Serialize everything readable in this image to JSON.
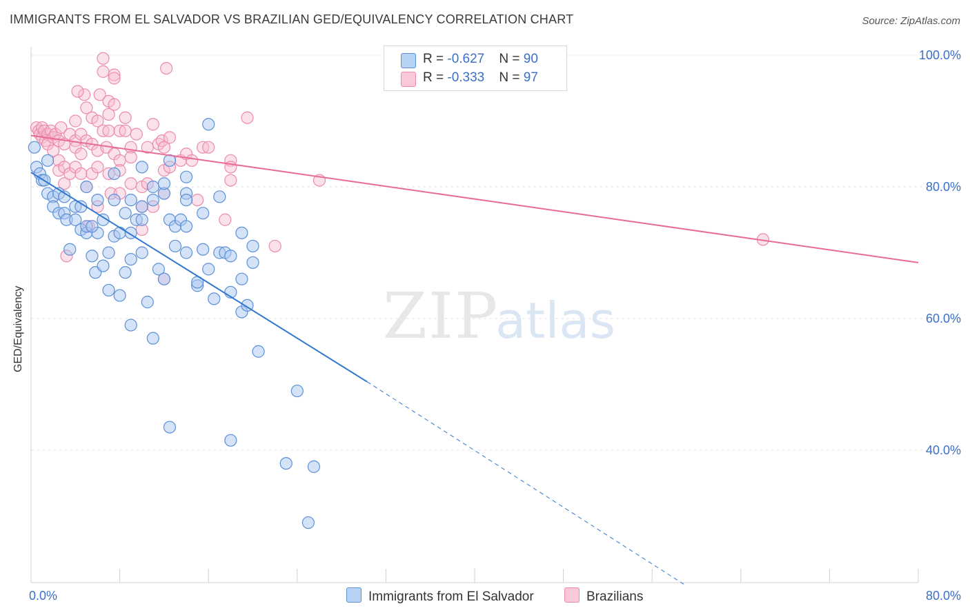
{
  "title": "IMMIGRANTS FROM EL SALVADOR VS BRAZILIAN GED/EQUIVALENCY CORRELATION CHART",
  "source": "Source: ZipAtlas.com",
  "watermark": {
    "zip": "ZIP",
    "atlas": "atlas"
  },
  "legend": {
    "series1": {
      "r_label": "R = ",
      "r_value": "-0.627",
      "n_label": "N = ",
      "n_value": "90"
    },
    "series2": {
      "r_label": "R = ",
      "r_value": "-0.333",
      "n_label": "N = ",
      "n_value": "97"
    }
  },
  "bottom_legend": {
    "series1": "Immigrants from El Salvador",
    "series2": "Brazilians"
  },
  "colors": {
    "blue_fill": "#a9c8f0",
    "blue_stroke": "#5b8fd8",
    "blue_line": "#2f77d0",
    "pink_fill": "#f7bcd0",
    "pink_stroke": "#ec8aab",
    "pink_line": "#e86b97",
    "tick": "#3b6fc9",
    "grid": "#e3e3e3"
  },
  "chart_data": {
    "type": "scatter",
    "title": "IMMIGRANTS FROM EL SALVADOR VS BRAZILIAN GED/EQUIVALENCY CORRELATION CHART",
    "xlabel": "",
    "ylabel": "GED/Equivalency",
    "xlim": [
      0,
      80
    ],
    "ylim": [
      20,
      102
    ],
    "x_tick_labels": [
      "0.0%",
      "80.0%"
    ],
    "y_ticks": [
      40,
      60,
      80,
      100
    ],
    "y_tick_labels": [
      "40.0%",
      "60.0%",
      "80.0%",
      "100.0%"
    ],
    "grid": true,
    "series": [
      {
        "name": "Immigrants from El Salvador",
        "R": -0.627,
        "N": 90,
        "trend": {
          "x0": 0,
          "y0": 82.2,
          "x1": 30.3,
          "y1": 50.4,
          "dashed_to_x": 59,
          "dashed_to_y": 19.5
        },
        "points": [
          [
            0.5,
            83
          ],
          [
            0.8,
            82
          ],
          [
            1,
            81
          ],
          [
            1.2,
            81
          ],
          [
            1.5,
            79
          ],
          [
            2,
            78.5
          ],
          [
            2,
            77
          ],
          [
            2.5,
            79
          ],
          [
            2.5,
            76
          ],
          [
            3,
            78.5
          ],
          [
            3,
            76
          ],
          [
            3.2,
            75
          ],
          [
            3.5,
            70.5
          ],
          [
            4,
            77
          ],
          [
            4,
            75
          ],
          [
            4.5,
            73.5
          ],
          [
            4.5,
            77
          ],
          [
            5,
            80
          ],
          [
            5,
            73
          ],
          [
            5.5,
            69.5
          ],
          [
            5,
            74
          ],
          [
            5.8,
            67
          ],
          [
            6,
            73
          ],
          [
            6,
            78
          ],
          [
            6.5,
            75
          ],
          [
            6.5,
            68
          ],
          [
            7,
            70
          ],
          [
            7,
            64.3
          ],
          [
            7.5,
            72.5
          ],
          [
            7.5,
            78
          ],
          [
            7.5,
            82
          ],
          [
            8,
            73
          ],
          [
            8,
            63.5
          ],
          [
            8.5,
            76
          ],
          [
            8.5,
            67
          ],
          [
            9,
            73
          ],
          [
            9,
            69
          ],
          [
            9,
            78
          ],
          [
            9,
            59
          ],
          [
            9.5,
            75
          ],
          [
            10,
            70
          ],
          [
            10,
            77
          ],
          [
            10,
            75
          ],
          [
            10,
            83
          ],
          [
            10.5,
            62.5
          ],
          [
            11,
            80
          ],
          [
            11,
            57
          ],
          [
            11,
            78
          ],
          [
            11.5,
            67.5
          ],
          [
            12,
            66
          ],
          [
            12,
            79
          ],
          [
            12,
            80.5
          ],
          [
            12.5,
            75
          ],
          [
            12.5,
            84
          ],
          [
            13,
            74
          ],
          [
            13,
            71
          ],
          [
            13.5,
            75
          ],
          [
            14,
            74
          ],
          [
            14,
            79
          ],
          [
            14,
            81.5
          ],
          [
            14,
            78
          ],
          [
            14,
            70
          ],
          [
            15,
            65
          ],
          [
            15,
            65.5
          ],
          [
            15.5,
            76
          ],
          [
            15.5,
            70.5
          ],
          [
            16,
            89.5
          ],
          [
            16,
            67.5
          ],
          [
            16.5,
            63
          ],
          [
            17,
            70
          ],
          [
            17,
            78.5
          ],
          [
            17.5,
            70
          ],
          [
            18,
            69.5
          ],
          [
            18,
            64
          ],
          [
            19,
            66
          ],
          [
            19,
            73
          ],
          [
            19,
            61
          ],
          [
            19.5,
            62
          ],
          [
            20,
            71
          ],
          [
            20,
            68.5
          ],
          [
            20.5,
            55
          ],
          [
            12.5,
            43.5
          ],
          [
            18,
            41.5
          ],
          [
            24,
            49
          ],
          [
            23,
            38
          ],
          [
            25.5,
            37.5
          ],
          [
            25,
            29
          ],
          [
            0.3,
            86
          ],
          [
            1.5,
            84
          ],
          [
            5.5,
            74
          ]
        ]
      },
      {
        "name": "Brazilians",
        "R": -0.333,
        "N": 97,
        "trend": {
          "x0": 0,
          "y0": 87.8,
          "x1": 80,
          "y1": 68.5
        },
        "points": [
          [
            0.5,
            89
          ],
          [
            0.7,
            88.5
          ],
          [
            0.8,
            88
          ],
          [
            1,
            89
          ],
          [
            1,
            87.5
          ],
          [
            1.2,
            88.5
          ],
          [
            1.3,
            87
          ],
          [
            1.5,
            88
          ],
          [
            1.5,
            86.5
          ],
          [
            1.8,
            88.5
          ],
          [
            2,
            87.5
          ],
          [
            2,
            85.5
          ],
          [
            2.2,
            88
          ],
          [
            2.5,
            87
          ],
          [
            2.5,
            84
          ],
          [
            2.5,
            82.5
          ],
          [
            2.7,
            89
          ],
          [
            3,
            86.5
          ],
          [
            3,
            83
          ],
          [
            3,
            80.5
          ],
          [
            3.2,
            69.5
          ],
          [
            3.5,
            88
          ],
          [
            3.5,
            82
          ],
          [
            4,
            90
          ],
          [
            4,
            87
          ],
          [
            4,
            86
          ],
          [
            4,
            83
          ],
          [
            4.5,
            88
          ],
          [
            4.5,
            85
          ],
          [
            4.5,
            82
          ],
          [
            4.8,
            94
          ],
          [
            5,
            92
          ],
          [
            5,
            87
          ],
          [
            5,
            80
          ],
          [
            5.2,
            74
          ],
          [
            5.5,
            90.5
          ],
          [
            5.5,
            86.5
          ],
          [
            5.5,
            82
          ],
          [
            6,
            90
          ],
          [
            6,
            85.5
          ],
          [
            6,
            83
          ],
          [
            6,
            77
          ],
          [
            6.2,
            94
          ],
          [
            6.5,
            99.5
          ],
          [
            6.5,
            97.5
          ],
          [
            6.5,
            88.5
          ],
          [
            6.8,
            86
          ],
          [
            7,
            93
          ],
          [
            7,
            91
          ],
          [
            7,
            88.5
          ],
          [
            7,
            82
          ],
          [
            7.2,
            79
          ],
          [
            7.5,
            97
          ],
          [
            7.5,
            96.5
          ],
          [
            7.5,
            92.5
          ],
          [
            7.5,
            85
          ],
          [
            8,
            88.5
          ],
          [
            8,
            84
          ],
          [
            8,
            82.5
          ],
          [
            8,
            79
          ],
          [
            8.5,
            90.5
          ],
          [
            8.5,
            88.5
          ],
          [
            9,
            86
          ],
          [
            9,
            84.5
          ],
          [
            9,
            80.5
          ],
          [
            9.5,
            88
          ],
          [
            10,
            80
          ],
          [
            10,
            77
          ],
          [
            10,
            73.5
          ],
          [
            10.5,
            86
          ],
          [
            10.5,
            80.5
          ],
          [
            11,
            89.5
          ],
          [
            11,
            77
          ],
          [
            11.5,
            86.5
          ],
          [
            11.8,
            87
          ],
          [
            12,
            86
          ],
          [
            12,
            82.5
          ],
          [
            12,
            79
          ],
          [
            12,
            66
          ],
          [
            12.2,
            98
          ],
          [
            12.5,
            87.5
          ],
          [
            12.5,
            83
          ],
          [
            13.5,
            84
          ],
          [
            14,
            85
          ],
          [
            14.5,
            84
          ],
          [
            15,
            78
          ],
          [
            15.5,
            86
          ],
          [
            16,
            86
          ],
          [
            17.5,
            75
          ],
          [
            18,
            84
          ],
          [
            18,
            81
          ],
          [
            18,
            83
          ],
          [
            19.5,
            90.5
          ],
          [
            22,
            71
          ],
          [
            26,
            81
          ],
          [
            66,
            72
          ],
          [
            4.2,
            94.5
          ]
        ]
      }
    ]
  }
}
